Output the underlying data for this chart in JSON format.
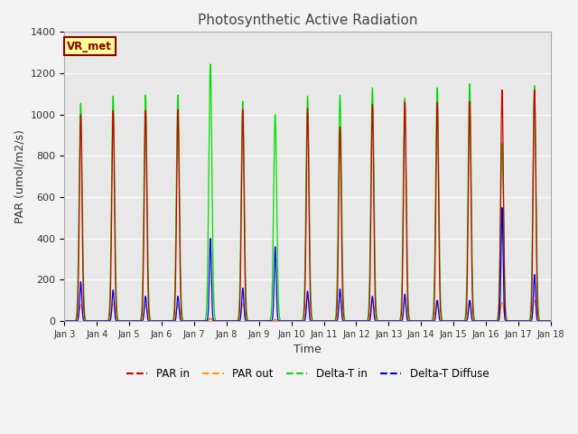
{
  "title": "Photosynthetic Active Radiation",
  "ylabel": "PAR (umol/m2/s)",
  "xlabel": "Time",
  "ylim": [
    0,
    1400
  ],
  "yticks": [
    0,
    200,
    400,
    600,
    800,
    1000,
    1200,
    1400
  ],
  "xtick_labels": [
    "Jan 3",
    "Jan 4",
    "Jan 5",
    "Jan 6",
    "Jan 7",
    "Jan 8",
    "Jan 9",
    "Jan 10",
    "Jan 11",
    "Jan 12",
    "Jan 13",
    "Jan 14",
    "Jan 15",
    "Jan 16",
    "Jan 17",
    "Jan 18"
  ],
  "colors": {
    "PAR_in": "#cc0000",
    "PAR_out": "#ff9900",
    "Delta_T_in": "#00dd00",
    "Delta_T_Diffuse": "#0000dd"
  },
  "background_color": "#f2f2f2",
  "plot_bg_color": "#e8e8e8",
  "watermark_text": "VR_met",
  "watermark_color": "#8b0000",
  "watermark_bg": "#ffff99",
  "title_color": "#444444",
  "axis_label_color": "#333333",
  "peaks_per_day": {
    "Jan 3": {
      "par_in": 1000,
      "par_out": 80,
      "delta_t": 1055,
      "diffuse": 190
    },
    "Jan 4": {
      "par_in": 1020,
      "par_out": 85,
      "delta_t": 1090,
      "diffuse": 150
    },
    "Jan 5": {
      "par_in": 1020,
      "par_out": 80,
      "delta_t": 1095,
      "diffuse": 120
    },
    "Jan 6": {
      "par_in": 1025,
      "par_out": 80,
      "delta_t": 1095,
      "diffuse": 120
    },
    "Jan 7": {
      "par_in": 12,
      "par_out": 10,
      "delta_t": 1245,
      "diffuse": 400
    },
    "Jan 8": {
      "par_in": 1025,
      "par_out": 85,
      "delta_t": 1065,
      "diffuse": 160
    },
    "Jan 9": {
      "par_in": 5,
      "par_out": 5,
      "delta_t": 1000,
      "diffuse": 360
    },
    "Jan 10": {
      "par_in": 1030,
      "par_out": 115,
      "delta_t": 1090,
      "diffuse": 145
    },
    "Jan 11": {
      "par_in": 940,
      "par_out": 100,
      "delta_t": 1095,
      "diffuse": 155
    },
    "Jan 12": {
      "par_in": 1050,
      "par_out": 95,
      "delta_t": 1130,
      "diffuse": 120
    },
    "Jan 13": {
      "par_in": 1060,
      "par_out": 95,
      "delta_t": 1080,
      "diffuse": 130
    },
    "Jan 14": {
      "par_in": 1060,
      "par_out": 95,
      "delta_t": 1130,
      "diffuse": 100
    },
    "Jan 15": {
      "par_in": 1065,
      "par_out": 95,
      "delta_t": 1150,
      "diffuse": 100
    },
    "Jan 16": {
      "par_in": 1120,
      "par_out": 90,
      "delta_t": 860,
      "diffuse": 550
    },
    "Jan 17": {
      "par_in": 1120,
      "par_out": 100,
      "delta_t": 1140,
      "diffuse": 225
    }
  },
  "sigma": 0.045
}
